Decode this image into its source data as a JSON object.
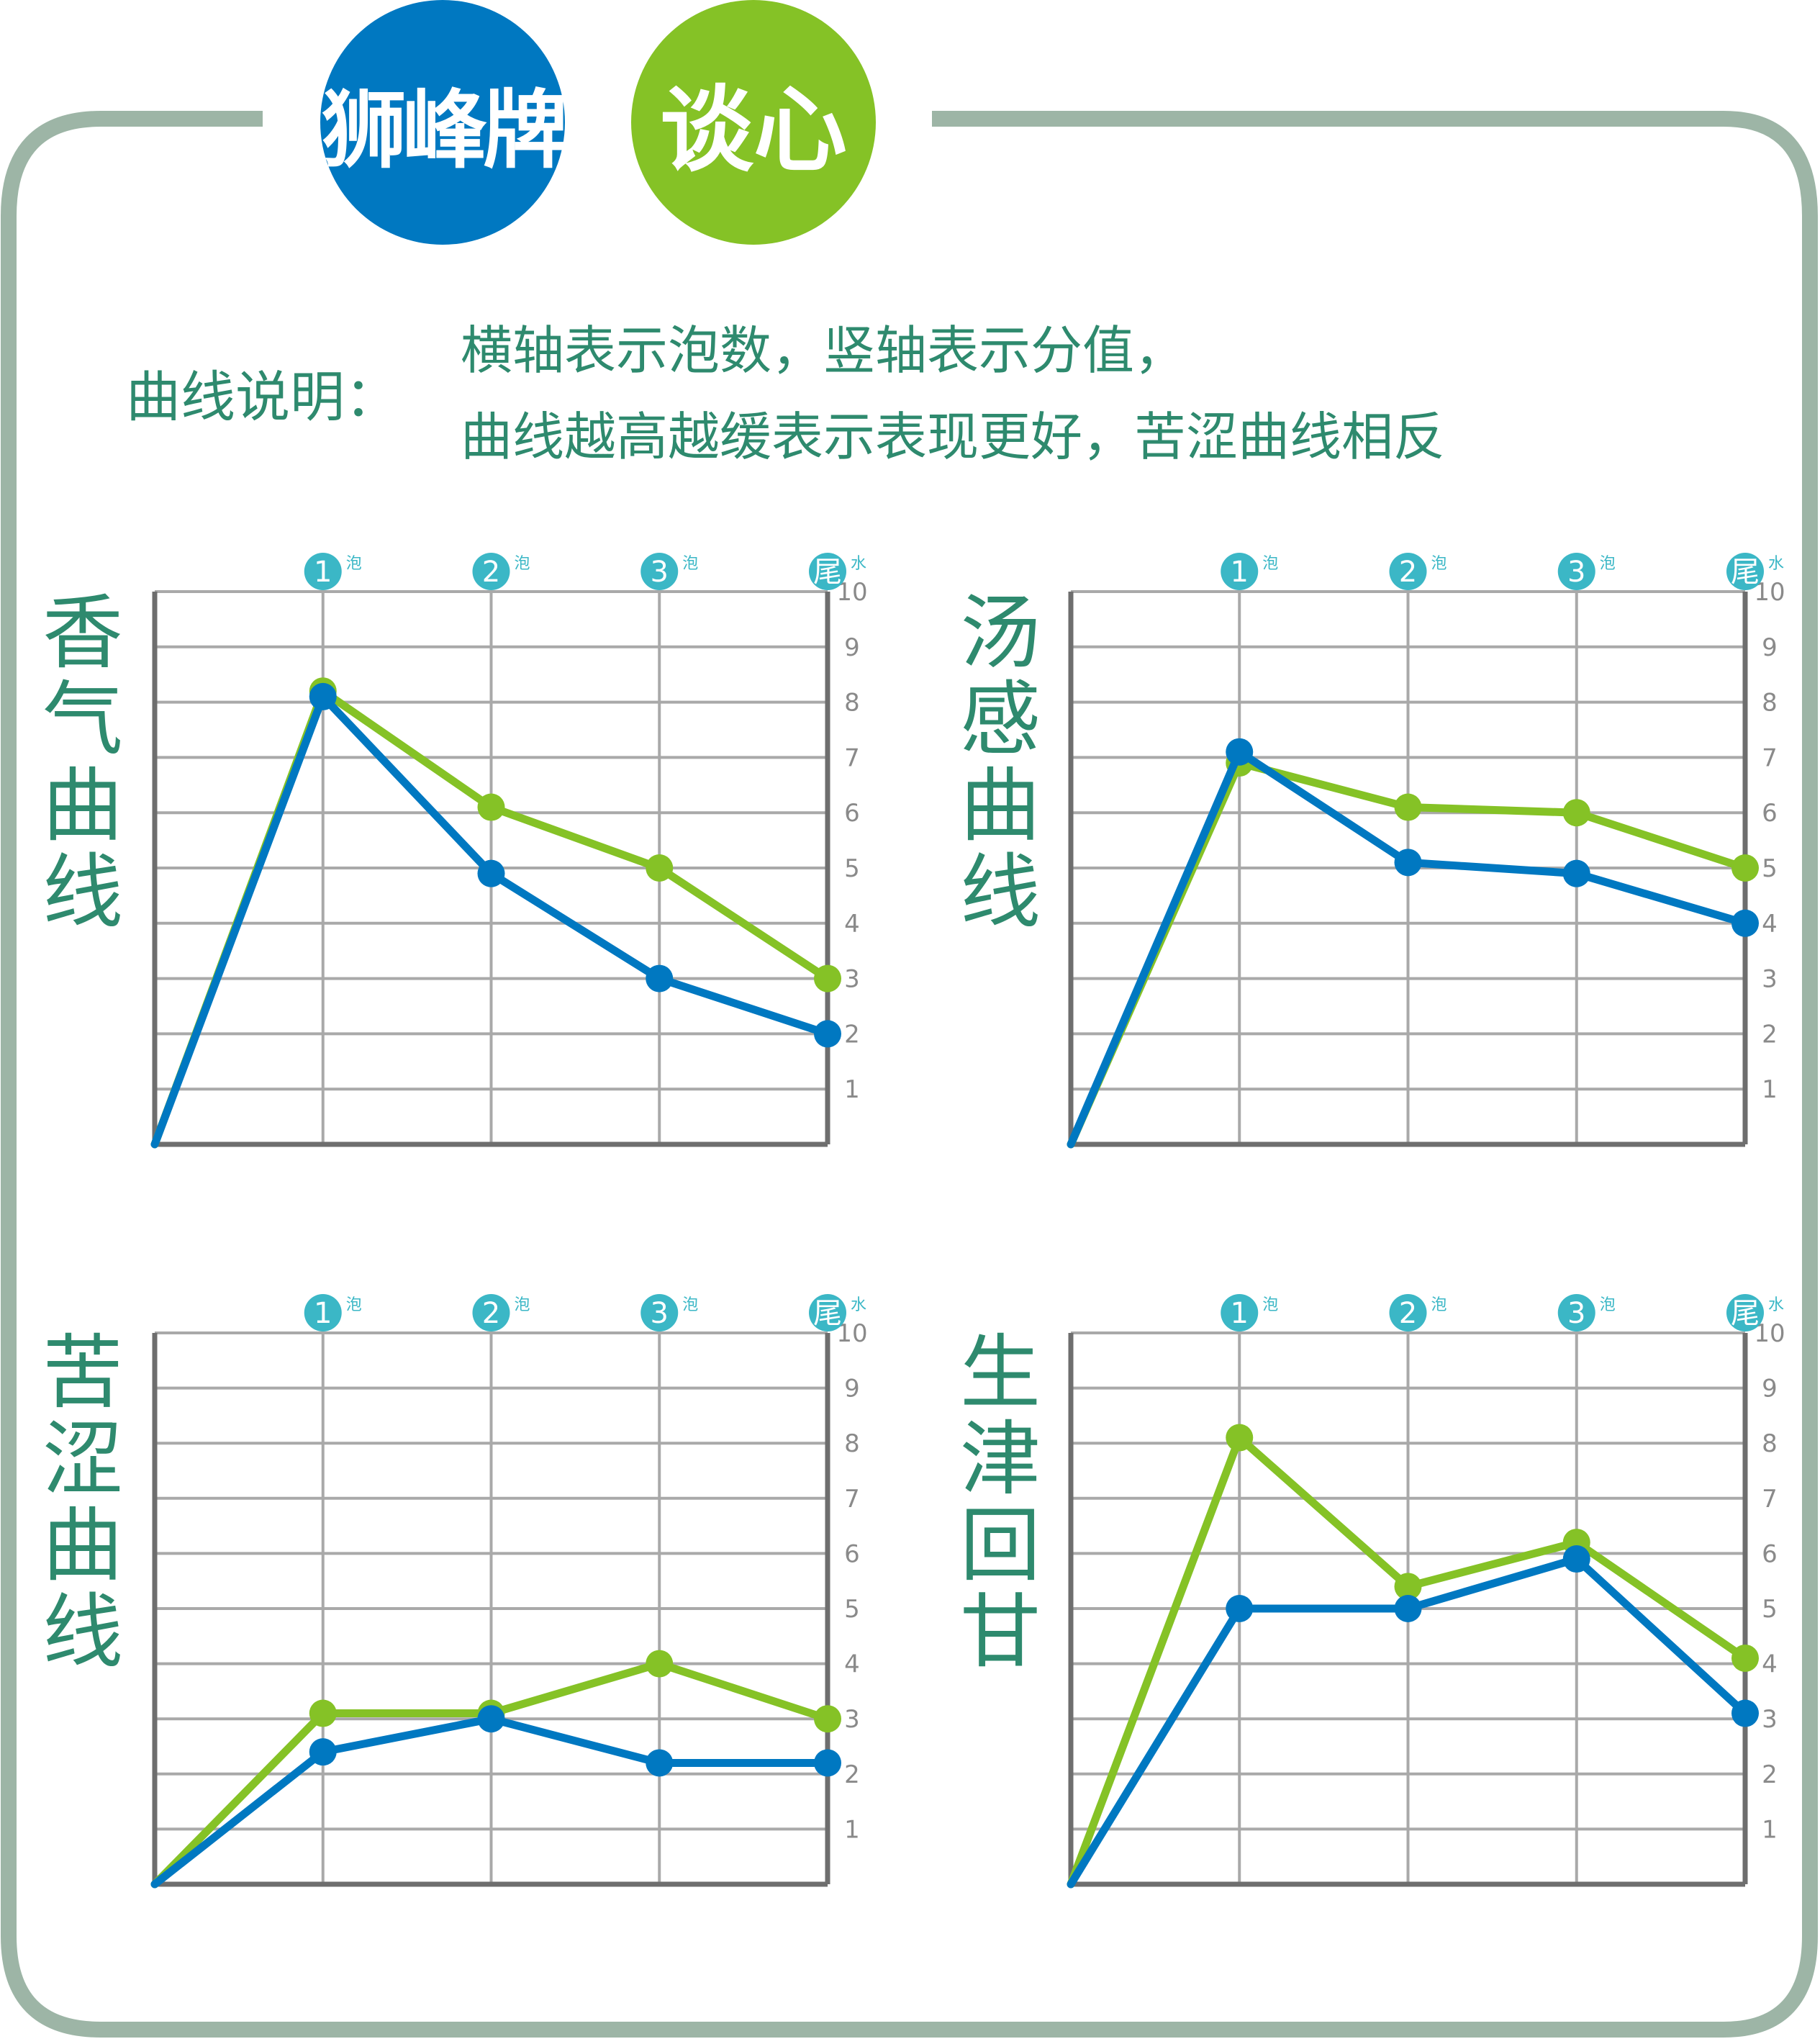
{
  "brand": {
    "name": "狮峰牌",
    "tag": "谈心",
    "colors": {
      "blue": "#0078c1",
      "green": "#85c226",
      "frame": "#9db5a6",
      "title": "#2e8a6e",
      "badge": "#3bb7c6"
    }
  },
  "legend": {
    "label": "曲线说明：",
    "line1": "横轴表示泡数，竖轴表示分值，",
    "line2": "曲线越高越缓表示表现更好，苦涩曲线相反"
  },
  "axis": {
    "x_ticks": [
      {
        "badge": "1",
        "suffix": "泡"
      },
      {
        "badge": "2",
        "suffix": "泡"
      },
      {
        "badge": "3",
        "suffix": "泡"
      },
      {
        "badge": "尾",
        "suffix": "水"
      }
    ],
    "y_ticks": [
      "1",
      "2",
      "3",
      "4",
      "5",
      "6",
      "7",
      "8",
      "9",
      "10"
    ]
  },
  "chart_data": [
    {
      "type": "line",
      "title": "香气曲线",
      "x": [
        0,
        1,
        2,
        3,
        4
      ],
      "ylim": [
        0,
        10
      ],
      "grid": true,
      "series": [
        {
          "color": "#85c226",
          "values": [
            0,
            8.2,
            6.1,
            5.0,
            3.0
          ]
        },
        {
          "color": "#0078c1",
          "values": [
            0,
            8.1,
            4.9,
            3.0,
            2.0
          ]
        }
      ]
    },
    {
      "type": "line",
      "title": "汤感曲线",
      "x": [
        0,
        1,
        2,
        3,
        4
      ],
      "ylim": [
        0,
        10
      ],
      "grid": true,
      "series": [
        {
          "color": "#85c226",
          "values": [
            0,
            6.9,
            6.1,
            6.0,
            5.0
          ]
        },
        {
          "color": "#0078c1",
          "values": [
            0,
            7.1,
            5.1,
            4.9,
            4.0
          ]
        }
      ]
    },
    {
      "type": "line",
      "title": "苦涩曲线",
      "x": [
        0,
        1,
        2,
        3,
        4
      ],
      "ylim": [
        0,
        10
      ],
      "grid": true,
      "series": [
        {
          "color": "#85c226",
          "values": [
            0,
            3.1,
            3.1,
            4.0,
            3.0
          ]
        },
        {
          "color": "#0078c1",
          "values": [
            0,
            2.4,
            3.0,
            2.2,
            2.2
          ]
        }
      ]
    },
    {
      "type": "line",
      "title": "生津回甘",
      "x": [
        0,
        1,
        2,
        3,
        4
      ],
      "ylim": [
        0,
        10
      ],
      "grid": true,
      "series": [
        {
          "color": "#85c226",
          "values": [
            0,
            8.1,
            5.4,
            6.2,
            4.1
          ]
        },
        {
          "color": "#0078c1",
          "values": [
            0,
            5.0,
            5.0,
            5.9,
            3.1
          ]
        }
      ]
    }
  ]
}
